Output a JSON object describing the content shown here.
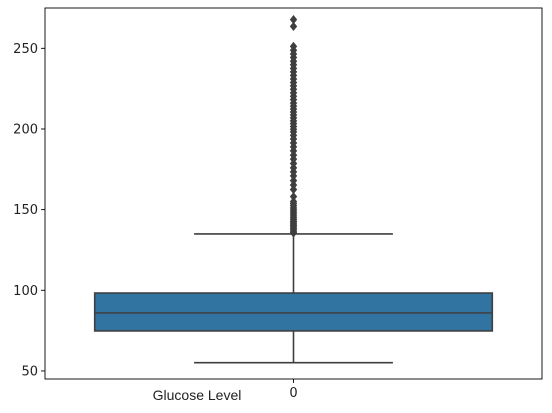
{
  "chart_data": {
    "type": "box",
    "xlabel": "Glucose Level",
    "categories": [
      "0"
    ],
    "ylim": [
      45,
      275
    ],
    "yticks": [
      50,
      100,
      150,
      200,
      250
    ],
    "boxes": [
      {
        "category": "0",
        "whisker_low": 55.1,
        "q1": 74.8,
        "median": 86.0,
        "q3": 98.3,
        "whisker_high": 134.9,
        "outliers": [
          135.5,
          136.2,
          137.4,
          138.3,
          139.2,
          140.1,
          141.0,
          141.9,
          142.8,
          143.9,
          145.0,
          146.1,
          147.4,
          148.5,
          149.8,
          151.0,
          152.4,
          153.7,
          155.0,
          158.1,
          162.5,
          165.3,
          168.0,
          170.9,
          173.4,
          175.9,
          178.6,
          181.3,
          183.8,
          186.4,
          188.9,
          191.3,
          193.8,
          196.0,
          198.2,
          199.8,
          201.5,
          203.3,
          205.0,
          206.9,
          208.7,
          210.5,
          212.4,
          214.2,
          216.0,
          218.2,
          220.3,
          222.4,
          224.6,
          226.7,
          228.8,
          231.0,
          233.2,
          235.4,
          237.6,
          239.8,
          242.0,
          244.3,
          246.5,
          248.8,
          251.2,
          263.6,
          267.8
        ]
      }
    ],
    "colors": {
      "box_fill": "#3274a1",
      "line": "#3f3f3f",
      "axes": "#000000"
    },
    "grid": false
  }
}
